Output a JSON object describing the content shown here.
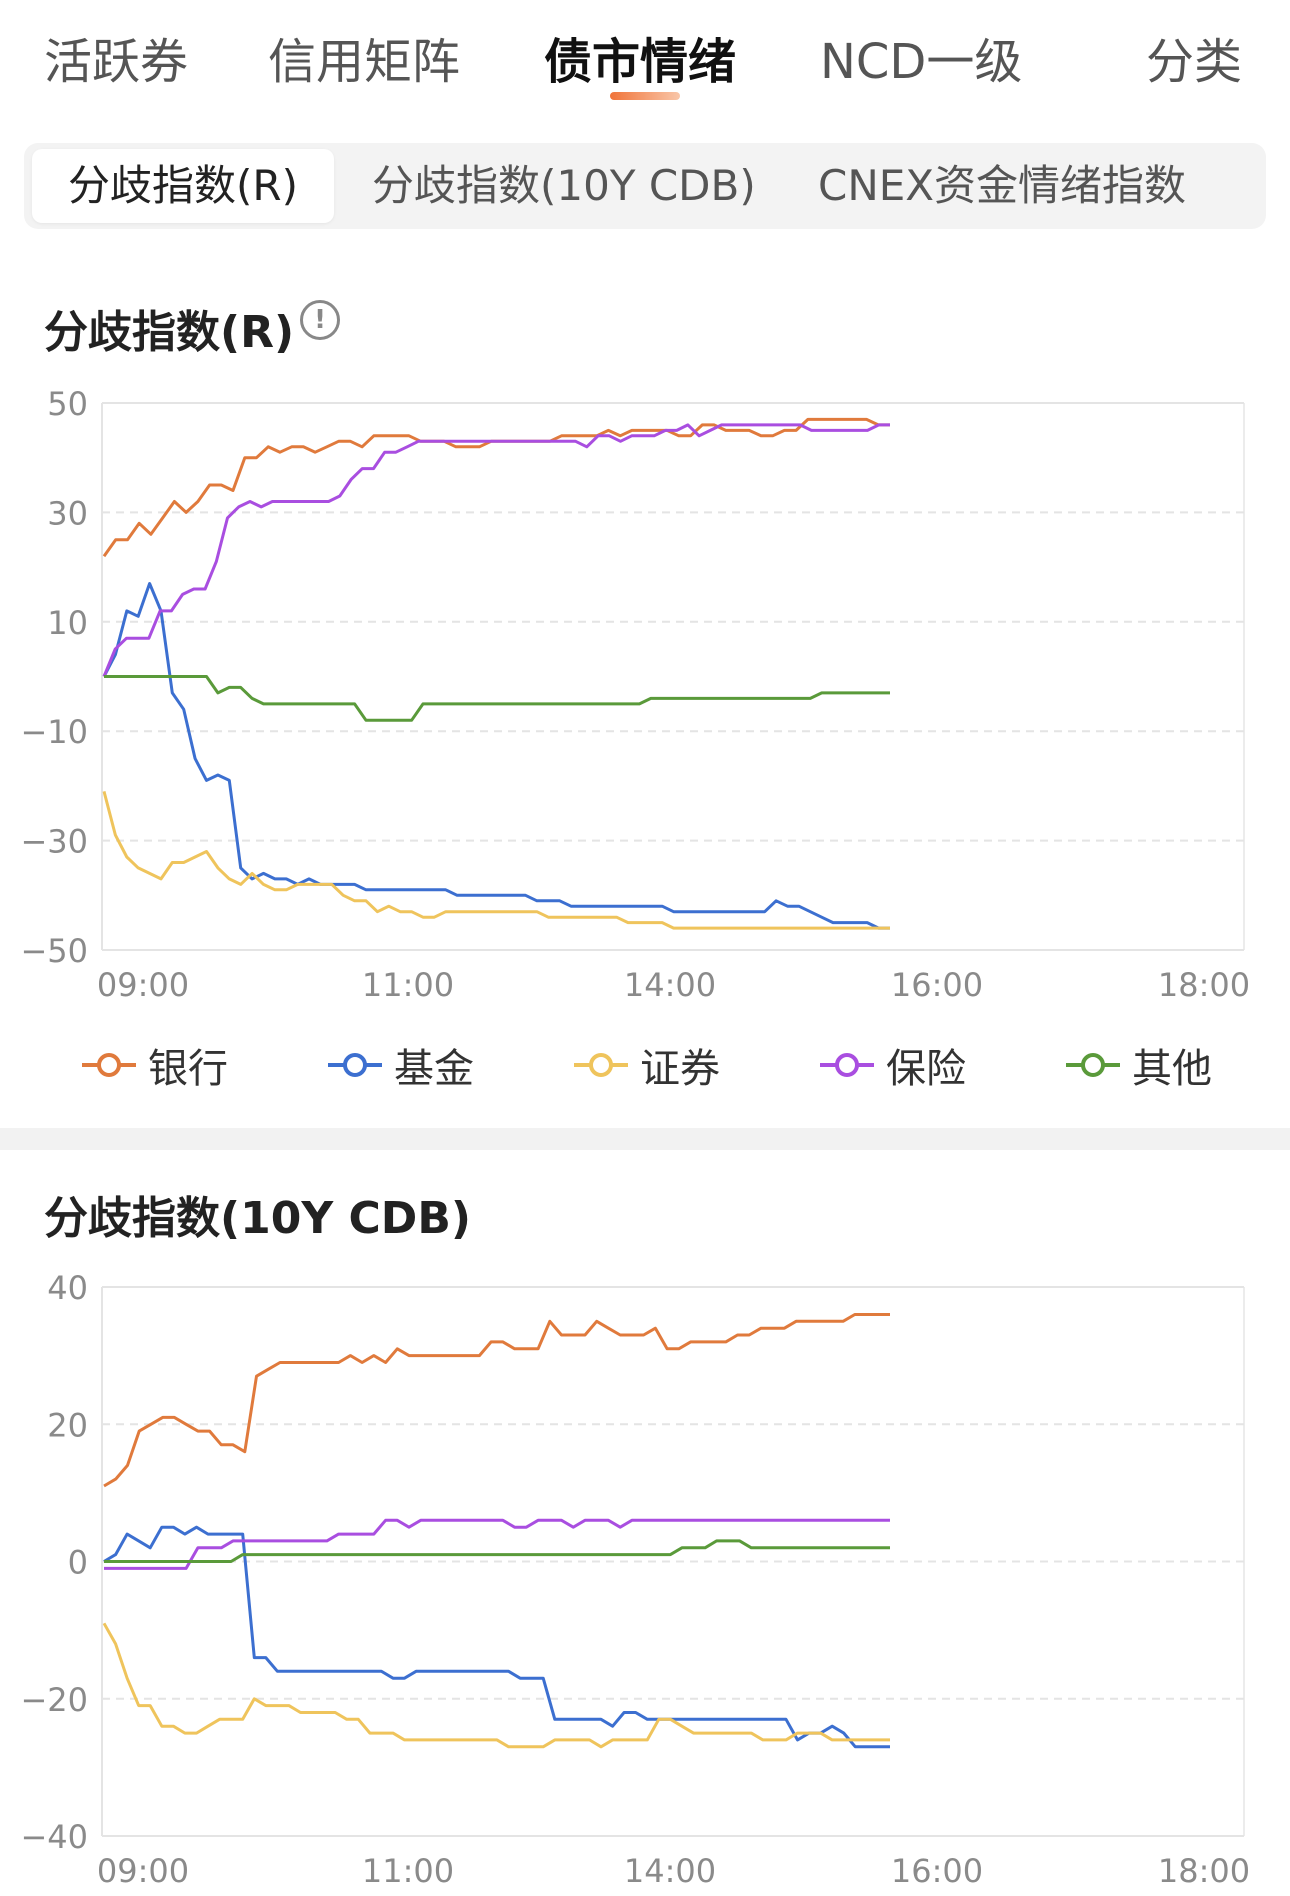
{
  "top_tabs": [
    {
      "label": "活跃券",
      "active": false
    },
    {
      "label": "信用矩阵",
      "active": false
    },
    {
      "label": "债市情绪",
      "active": true
    },
    {
      "label": "NCD一级",
      "active": false
    },
    {
      "label": "分类",
      "active": false
    }
  ],
  "sub_tabs": [
    {
      "label": "分歧指数(R)",
      "active": true
    },
    {
      "label": "分歧指数(10Y CDB)",
      "active": false
    },
    {
      "label": "CNEX资金情绪指数",
      "active": false
    }
  ],
  "section1": {
    "title": "分歧指数(R)",
    "info_icon": "info-icon"
  },
  "section2": {
    "title": "分歧指数(10Y CDB)"
  },
  "colors": {
    "银行": "#e07a3c",
    "基金": "#3c6fd0",
    "证券": "#efc45c",
    "保险": "#a94ee0",
    "其他": "#5a9a3a",
    "accent": "#f0743a"
  },
  "legend": [
    {
      "name": "银行",
      "color": "#e07a3c"
    },
    {
      "name": "基金",
      "color": "#3c6fd0"
    },
    {
      "name": "证券",
      "color": "#efc45c"
    },
    {
      "name": "保险",
      "color": "#a94ee0"
    },
    {
      "name": "其他",
      "color": "#5a9a3a"
    }
  ],
  "chart_data": [
    {
      "type": "line",
      "title": "分歧指数(R)",
      "ylim": [
        -50,
        50
      ],
      "yticks": [
        "50",
        "30",
        "10",
        "−10",
        "−30",
        "−50"
      ],
      "xticks": [
        "09:00",
        "11:00",
        "14:00",
        "16:00",
        "18:00"
      ],
      "grid": true,
      "legend_position": "bottom",
      "series": [
        {
          "name": "银行",
          "values": [
            22,
            25,
            25,
            28,
            26,
            29,
            32,
            30,
            32,
            35,
            35,
            34,
            40,
            40,
            42,
            41,
            42,
            42,
            41,
            42,
            43,
            43,
            42,
            44,
            44,
            44,
            44,
            43,
            43,
            43,
            42,
            42,
            42,
            43,
            43,
            43,
            43,
            43,
            43,
            44,
            44,
            44,
            44,
            45,
            44,
            45,
            45,
            45,
            45,
            44,
            44,
            46,
            46,
            45,
            45,
            45,
            44,
            44,
            45,
            45,
            47,
            47,
            47,
            47,
            47,
            47,
            46,
            46
          ]
        },
        {
          "name": "基金",
          "values": [
            0,
            4,
            12,
            11,
            17,
            12,
            -3,
            -6,
            -15,
            -19,
            -18,
            -19,
            -35,
            -37,
            -36,
            -37,
            -37,
            -38,
            -37,
            -38,
            -38,
            -38,
            -38,
            -39,
            -39,
            -39,
            -39,
            -39,
            -39,
            -39,
            -39,
            -40,
            -40,
            -40,
            -40,
            -40,
            -40,
            -40,
            -41,
            -41,
            -41,
            -42,
            -42,
            -42,
            -42,
            -42,
            -42,
            -42,
            -42,
            -42,
            -43,
            -43,
            -43,
            -43,
            -43,
            -43,
            -43,
            -43,
            -43,
            -41,
            -42,
            -42,
            -43,
            -44,
            -45,
            -45,
            -45,
            -45,
            -46,
            -46
          ]
        },
        {
          "name": "证券",
          "values": [
            -21,
            -29,
            -33,
            -35,
            -36,
            -37,
            -34,
            -34,
            -33,
            -32,
            -35,
            -37,
            -38,
            -36,
            -38,
            -39,
            -39,
            -38,
            -38,
            -38,
            -38,
            -40,
            -41,
            -41,
            -43,
            -42,
            -43,
            -43,
            -44,
            -44,
            -43,
            -43,
            -43,
            -43,
            -43,
            -43,
            -43,
            -43,
            -43,
            -44,
            -44,
            -44,
            -44,
            -44,
            -44,
            -44,
            -45,
            -45,
            -45,
            -45,
            -46,
            -46,
            -46,
            -46,
            -46,
            -46,
            -46,
            -46,
            -46,
            -46,
            -46,
            -46,
            -46,
            -46,
            -46,
            -46,
            -46,
            -46,
            -46,
            -46
          ]
        },
        {
          "name": "保险",
          "values": [
            0,
            5,
            7,
            7,
            7,
            12,
            12,
            15,
            16,
            16,
            21,
            29,
            31,
            32,
            31,
            32,
            32,
            32,
            32,
            32,
            32,
            33,
            36,
            38,
            38,
            41,
            41,
            42,
            43,
            43,
            43,
            43,
            43,
            43,
            43,
            43,
            43,
            43,
            43,
            43,
            43,
            43,
            43,
            42,
            44,
            44,
            43,
            44,
            44,
            44,
            45,
            45,
            46,
            44,
            45,
            46,
            46,
            46,
            46,
            46,
            46,
            46,
            46,
            45,
            45,
            45,
            45,
            45,
            45,
            46,
            46
          ]
        },
        {
          "name": "其他",
          "values": [
            0,
            0,
            0,
            0,
            0,
            0,
            0,
            0,
            0,
            0,
            -3,
            -2,
            -2,
            -4,
            -5,
            -5,
            -5,
            -5,
            -5,
            -5,
            -5,
            -5,
            -5,
            -8,
            -8,
            -8,
            -8,
            -8,
            -5,
            -5,
            -5,
            -5,
            -5,
            -5,
            -5,
            -5,
            -5,
            -5,
            -5,
            -5,
            -5,
            -5,
            -5,
            -5,
            -5,
            -5,
            -5,
            -5,
            -4,
            -4,
            -4,
            -4,
            -4,
            -4,
            -4,
            -4,
            -4,
            -4,
            -4,
            -4,
            -4,
            -4,
            -4,
            -3,
            -3,
            -3,
            -3,
            -3,
            -3,
            -3
          ]
        }
      ]
    },
    {
      "type": "line",
      "title": "分歧指数(10Y CDB)",
      "ylim": [
        -40,
        40
      ],
      "yticks": [
        "40",
        "20",
        "0",
        "−20",
        "−40"
      ],
      "xticks": [
        "09:00",
        "11:00",
        "14:00",
        "16:00",
        "18:00"
      ],
      "grid": true,
      "series": [
        {
          "name": "银行",
          "values": [
            11,
            12,
            14,
            19,
            20,
            21,
            21,
            20,
            19,
            19,
            17,
            17,
            16,
            27,
            28,
            29,
            29,
            29,
            29,
            29,
            29,
            30,
            29,
            30,
            29,
            31,
            30,
            30,
            30,
            30,
            30,
            30,
            30,
            32,
            32,
            31,
            31,
            31,
            35,
            33,
            33,
            33,
            35,
            34,
            33,
            33,
            33,
            34,
            31,
            31,
            32,
            32,
            32,
            32,
            33,
            33,
            34,
            34,
            34,
            35,
            35,
            35,
            35,
            35,
            36,
            36,
            36,
            36
          ]
        },
        {
          "name": "基金",
          "values": [
            0,
            1,
            4,
            3,
            2,
            5,
            5,
            4,
            5,
            4,
            4,
            4,
            4,
            -14,
            -14,
            -16,
            -16,
            -16,
            -16,
            -16,
            -16,
            -16,
            -16,
            -16,
            -16,
            -17,
            -17,
            -16,
            -16,
            -16,
            -16,
            -16,
            -16,
            -16,
            -16,
            -16,
            -17,
            -17,
            -17,
            -23,
            -23,
            -23,
            -23,
            -23,
            -24,
            -22,
            -22,
            -23,
            -23,
            -23,
            -23,
            -23,
            -23,
            -23,
            -23,
            -23,
            -23,
            -23,
            -23,
            -23,
            -26,
            -25,
            -25,
            -24,
            -25,
            -27,
            -27,
            -27,
            -27
          ]
        },
        {
          "name": "证券",
          "values": [
            -9,
            -12,
            -17,
            -21,
            -21,
            -24,
            -24,
            -25,
            -25,
            -24,
            -23,
            -23,
            -23,
            -20,
            -21,
            -21,
            -21,
            -22,
            -22,
            -22,
            -22,
            -23,
            -23,
            -25,
            -25,
            -25,
            -26,
            -26,
            -26,
            -26,
            -26,
            -26,
            -26,
            -26,
            -26,
            -27,
            -27,
            -27,
            -27,
            -26,
            -26,
            -26,
            -26,
            -27,
            -26,
            -26,
            -26,
            -26,
            -23,
            -23,
            -24,
            -25,
            -25,
            -25,
            -25,
            -25,
            -25,
            -26,
            -26,
            -26,
            -25,
            -25,
            -25,
            -26,
            -26,
            -26,
            -26,
            -26,
            -26
          ]
        },
        {
          "name": "保险",
          "values": [
            -1,
            -1,
            -1,
            -1,
            -1,
            -1,
            -1,
            -1,
            2,
            2,
            2,
            3,
            3,
            3,
            3,
            3,
            3,
            3,
            3,
            3,
            4,
            4,
            4,
            4,
            6,
            6,
            5,
            6,
            6,
            6,
            6,
            6,
            6,
            6,
            6,
            5,
            5,
            6,
            6,
            6,
            5,
            6,
            6,
            6,
            5,
            6,
            6,
            6,
            6,
            6,
            6,
            6,
            6,
            6,
            6,
            6,
            6,
            6,
            6,
            6,
            6,
            6,
            6,
            6,
            6,
            6,
            6,
            6
          ]
        },
        {
          "name": "其他",
          "values": [
            0,
            0,
            0,
            0,
            0,
            0,
            0,
            0,
            0,
            0,
            0,
            0,
            1,
            1,
            1,
            1,
            1,
            1,
            1,
            1,
            1,
            1,
            1,
            1,
            1,
            1,
            1,
            1,
            1,
            1,
            1,
            1,
            1,
            1,
            1,
            1,
            1,
            1,
            1,
            1,
            1,
            1,
            1,
            1,
            1,
            1,
            1,
            1,
            1,
            1,
            2,
            2,
            2,
            3,
            3,
            3,
            2,
            2,
            2,
            2,
            2,
            2,
            2,
            2,
            2,
            2,
            2,
            2,
            2
          ]
        }
      ]
    }
  ]
}
